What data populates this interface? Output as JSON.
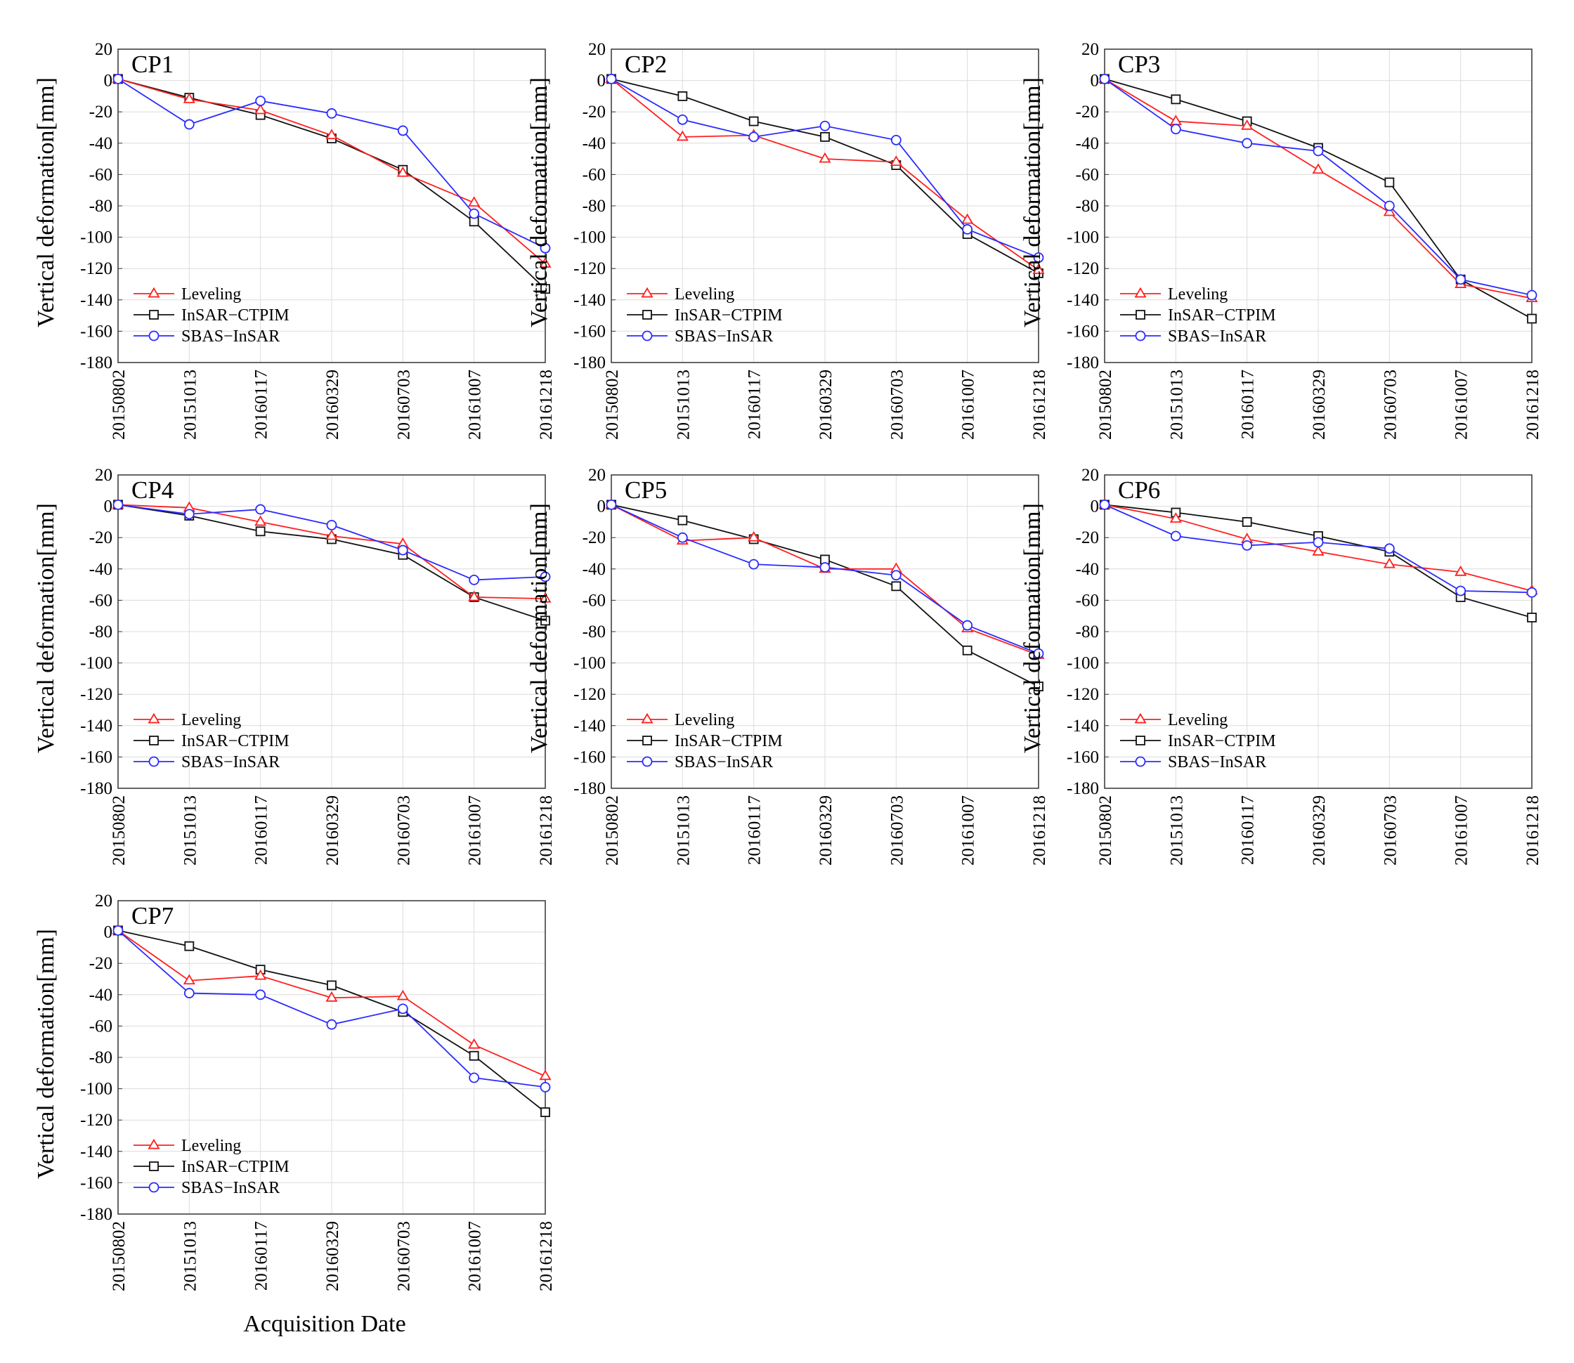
{
  "chart_data": {
    "type": "line",
    "ylabel": "Vertical deformation[mm]",
    "xlabel": "Acquisition Date",
    "categories": [
      "20150802",
      "20151013",
      "20160117",
      "20160329",
      "20160703",
      "20161007",
      "20161218"
    ],
    "ylim": [
      -180,
      20
    ],
    "yticks": [
      20,
      0,
      -20,
      -40,
      -60,
      -80,
      -100,
      -120,
      -140,
      -160,
      -180
    ],
    "grid": true,
    "legend_position": "bottom-left",
    "series_styles": [
      {
        "name": "Leveling",
        "color": "#ff2020",
        "marker": "triangle"
      },
      {
        "name": "InSAR−CTPIM",
        "color": "#111111",
        "marker": "square"
      },
      {
        "name": "SBAS−InSAR",
        "color": "#2b2bff",
        "marker": "circle"
      }
    ],
    "panels": [
      {
        "title": "CP1",
        "series": [
          {
            "name": "Leveling",
            "values": [
              1,
              -12,
              -19,
              -35,
              -59,
              -78,
              -117
            ]
          },
          {
            "name": "InSAR−CTPIM",
            "values": [
              1,
              -11,
              -22,
              -37,
              -57,
              -90,
              -133
            ]
          },
          {
            "name": "SBAS−InSAR",
            "values": [
              1,
              -28,
              -13,
              -21,
              -32,
              -85,
              -107
            ]
          }
        ]
      },
      {
        "title": "CP2",
        "series": [
          {
            "name": "Leveling",
            "values": [
              1,
              -36,
              -35,
              -50,
              -52,
              -89,
              -121
            ]
          },
          {
            "name": "InSAR−CTPIM",
            "values": [
              1,
              -10,
              -26,
              -36,
              -54,
              -98,
              -123
            ]
          },
          {
            "name": "SBAS−InSAR",
            "values": [
              1,
              -25,
              -36,
              -29,
              -38,
              -95,
              -113
            ]
          }
        ]
      },
      {
        "title": "CP3",
        "series": [
          {
            "name": "Leveling",
            "values": [
              1,
              -26,
              -29,
              -57,
              -84,
              -130,
              -139
            ]
          },
          {
            "name": "InSAR−CTPIM",
            "values": [
              1,
              -12,
              -26,
              -43,
              -65,
              -127,
              -152
            ]
          },
          {
            "name": "SBAS−InSAR",
            "values": [
              1,
              -31,
              -40,
              -45,
              -80,
              -127,
              -137
            ]
          }
        ]
      },
      {
        "title": "CP4",
        "series": [
          {
            "name": "Leveling",
            "values": [
              1,
              -1,
              -10,
              -19,
              -24,
              -58,
              -59
            ]
          },
          {
            "name": "InSAR−CTPIM",
            "values": [
              1,
              -6,
              -16,
              -21,
              -31,
              -58,
              -73
            ]
          },
          {
            "name": "SBAS−InSAR",
            "values": [
              1,
              -5,
              -2,
              -12,
              -28,
              -47,
              -45
            ]
          }
        ]
      },
      {
        "title": "CP5",
        "series": [
          {
            "name": "Leveling",
            "values": [
              1,
              -22,
              -20,
              -40,
              -40,
              -78,
              -95
            ]
          },
          {
            "name": "InSAR−CTPIM",
            "values": [
              1,
              -9,
              -21,
              -34,
              -51,
              -92,
              -115
            ]
          },
          {
            "name": "SBAS−InSAR",
            "values": [
              1,
              -20,
              -37,
              -39,
              -44,
              -76,
              -94
            ]
          }
        ]
      },
      {
        "title": "CP6",
        "series": [
          {
            "name": "Leveling",
            "values": [
              1,
              -8,
              -21,
              -29,
              -37,
              -42,
              -54
            ]
          },
          {
            "name": "InSAR−CTPIM",
            "values": [
              1,
              -4,
              -10,
              -19,
              -29,
              -58,
              -71
            ]
          },
          {
            "name": "SBAS−InSAR",
            "values": [
              1,
              -19,
              -25,
              -23,
              -27,
              -54,
              -55
            ]
          }
        ]
      },
      {
        "title": "CP7",
        "series": [
          {
            "name": "Leveling",
            "values": [
              1,
              -31,
              -28,
              -42,
              -41,
              -72,
              -92
            ]
          },
          {
            "name": "InSAR−CTPIM",
            "values": [
              1,
              -9,
              -24,
              -34,
              -51,
              -79,
              -115
            ]
          },
          {
            "name": "SBAS−InSAR",
            "values": [
              1,
              -39,
              -40,
              -59,
              -49,
              -93,
              -99
            ]
          }
        ]
      }
    ]
  }
}
